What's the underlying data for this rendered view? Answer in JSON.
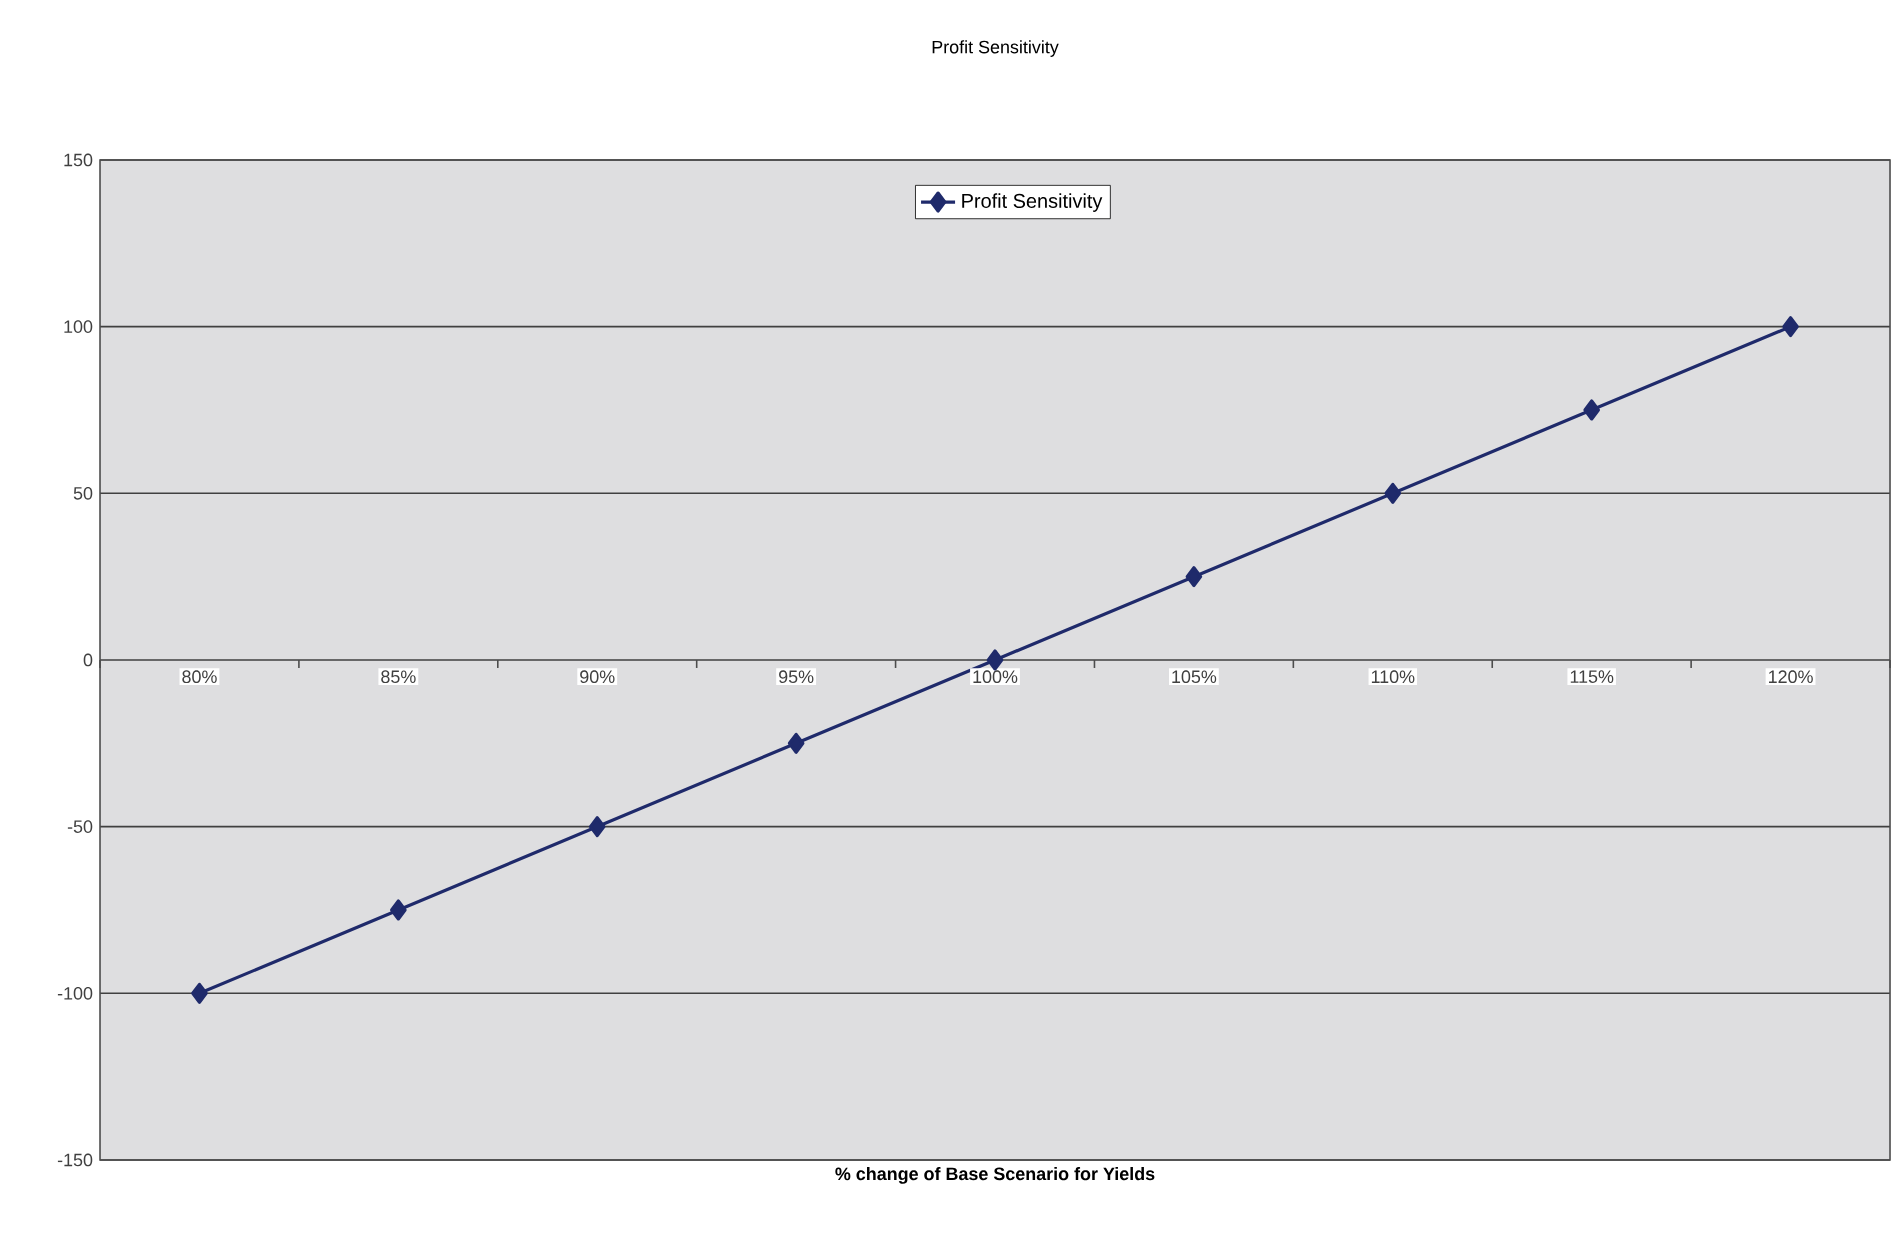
{
  "chart_data": {
    "type": "line",
    "title": "Profit Sensitivity",
    "xlabel": "% change of Base Scenario for Yields",
    "categories": [
      "80%",
      "85%",
      "90%",
      "95%",
      "100%",
      "105%",
      "110%",
      "115%",
      "120%"
    ],
    "series": [
      {
        "name": "Profit Sensitivity",
        "color": "#1f2a6b",
        "values": [
          -100,
          -75,
          -50,
          -25,
          0,
          25,
          50,
          75,
          100
        ]
      }
    ],
    "ylim": [
      -150,
      150
    ],
    "yticks": [
      -150,
      -100,
      -50,
      0,
      50,
      100,
      150
    ],
    "grid": "y",
    "legend": "top",
    "marker": "diamond"
  }
}
